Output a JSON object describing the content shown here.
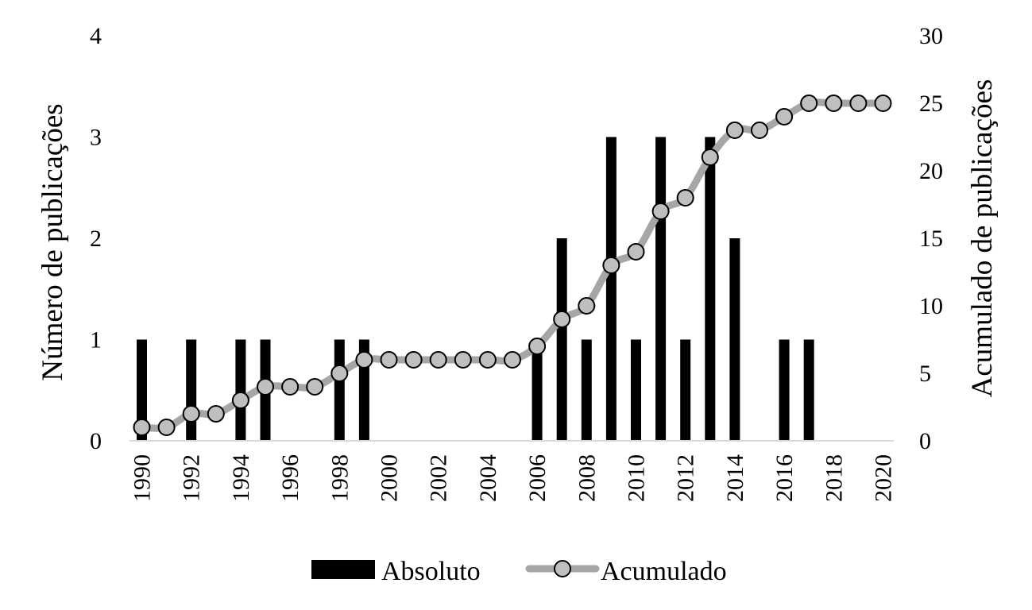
{
  "chart_data": {
    "type": "bar",
    "combo": "bar+line",
    "title": "",
    "x": [
      1990,
      1991,
      1992,
      1993,
      1994,
      1995,
      1996,
      1997,
      1998,
      1999,
      2000,
      2001,
      2002,
      2003,
      2004,
      2005,
      2006,
      2007,
      2008,
      2009,
      2010,
      2011,
      2012,
      2013,
      2014,
      2015,
      2016,
      2017,
      2018,
      2019,
      2020
    ],
    "x_tick_labels": [
      "1990",
      "1992",
      "1994",
      "1996",
      "1998",
      "2000",
      "2002",
      "2004",
      "2006",
      "2008",
      "2010",
      "2012",
      "2014",
      "2016",
      "2018",
      "2020"
    ],
    "ylabel_left": "Número de publicações",
    "ylabel_right": "Acumulado de publicações",
    "ylim_left": [
      0,
      4
    ],
    "ylim_right": [
      0,
      30
    ],
    "yticks_left": [
      "0",
      "1",
      "2",
      "3",
      "4"
    ],
    "yticks_right": [
      "0",
      "5",
      "10",
      "15",
      "20",
      "25",
      "30"
    ],
    "grid": false,
    "legend_position": "bottom",
    "series": [
      {
        "name": "Absoluto",
        "type": "bar",
        "axis": "left",
        "color": "#000000",
        "values": [
          1,
          0,
          1,
          0,
          1,
          1,
          0,
          0,
          1,
          1,
          0,
          0,
          0,
          0,
          0,
          0,
          1,
          2,
          1,
          3,
          1,
          3,
          1,
          3,
          2,
          0,
          1,
          1,
          0,
          0,
          0
        ]
      },
      {
        "name": "Acumulado",
        "type": "line",
        "axis": "right",
        "color": "#a6a6a6",
        "marker_fill": "#bfbfbf",
        "marker_edge": "#000000",
        "values": [
          1,
          1,
          2,
          2,
          3,
          4,
          4,
          4,
          5,
          6,
          6,
          6,
          6,
          6,
          6,
          6,
          7,
          9,
          10,
          13,
          14,
          17,
          18,
          21,
          23,
          23,
          24,
          25,
          25,
          25,
          25
        ]
      }
    ]
  }
}
